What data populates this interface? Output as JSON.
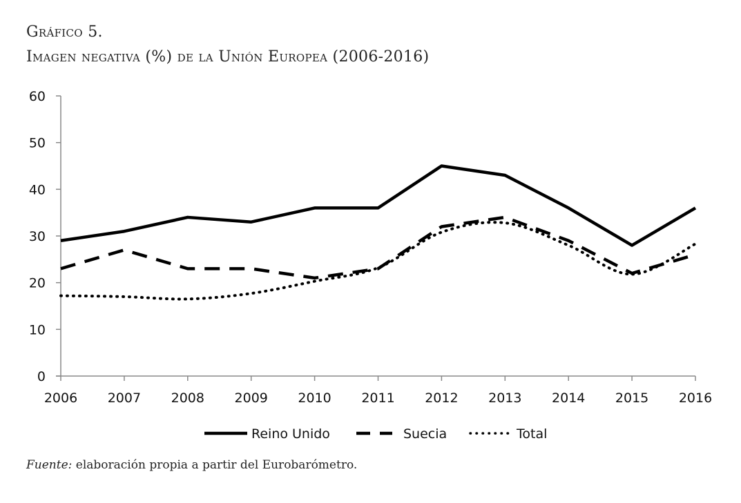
{
  "header": {
    "figure_label": "Gráfico 5.",
    "title": "Imagen negativa (%) de la Unión Europea (2006-2016)"
  },
  "source": {
    "prefix": "Fuente:",
    "text": " elaboración propia a partir del Eurobarómetro."
  },
  "chart_data": {
    "type": "line",
    "title": "Imagen negativa (%) de la Unión Europea (2006-2016)",
    "xlabel": "",
    "ylabel": "",
    "categories": [
      "2006",
      "2007",
      "2008",
      "2009",
      "2010",
      "2011",
      "2012",
      "2013",
      "2014",
      "2015",
      "2016"
    ],
    "ylim": [
      0,
      60
    ],
    "yticks": [
      "0",
      "10",
      "20",
      "30",
      "40",
      "50",
      "60"
    ],
    "grid": false,
    "legend_position": "bottom",
    "series": [
      {
        "name": "Reino Unido",
        "style": "solid",
        "color": "#000000",
        "values": [
          29,
          31,
          34,
          33,
          36,
          36,
          45,
          43,
          36,
          28,
          36
        ]
      },
      {
        "name": "Suecia",
        "style": "dashed",
        "color": "#000000",
        "values": [
          23,
          27,
          23,
          23,
          21,
          23,
          32,
          34,
          29,
          22,
          26
        ]
      },
      {
        "name": "Total",
        "style": "dotted",
        "color": "#000000",
        "values": [
          17.2,
          17,
          16.5,
          17.7,
          20.3,
          23.2,
          30.8,
          32.8,
          28,
          21.8,
          28.3
        ]
      }
    ]
  }
}
